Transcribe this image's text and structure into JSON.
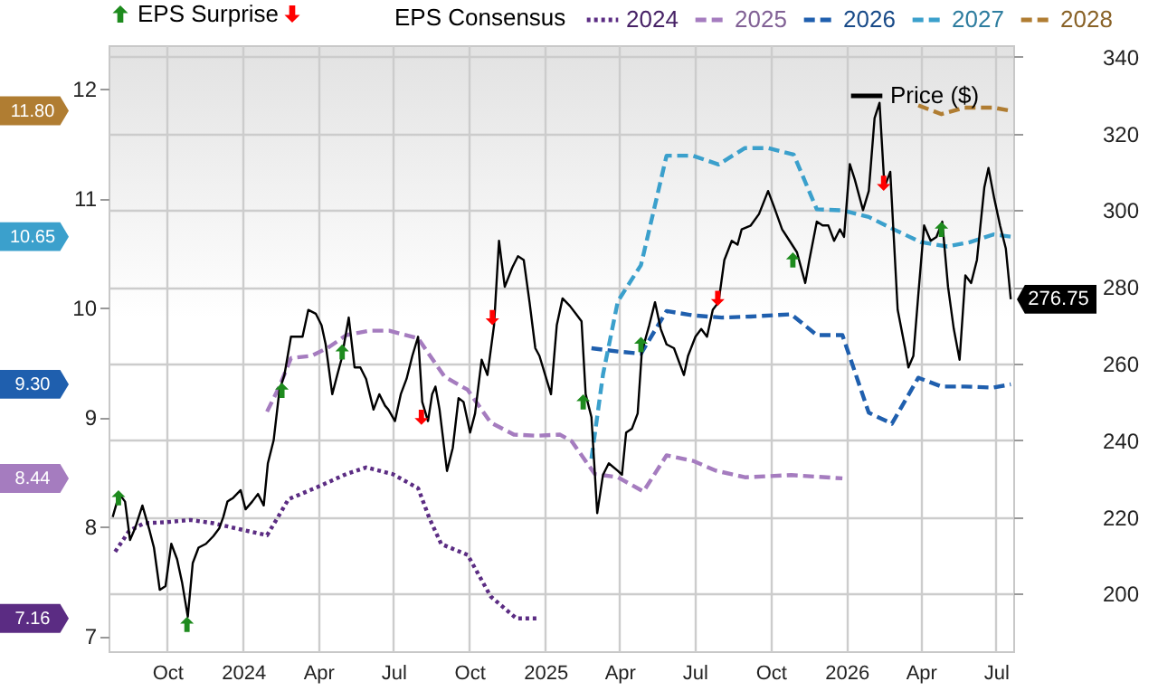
{
  "chart_data": {
    "type": "line",
    "legend_title": "EPS Consensus",
    "legend": "top",
    "grid": true,
    "xlim": [
      "2023-07-22",
      "2026-07-22"
    ],
    "xticks": [
      {
        "value": "2023-10-01",
        "label": "Oct"
      },
      {
        "value": "2024-01-01",
        "label": "2024"
      },
      {
        "value": "2024-04-01",
        "label": "Apr"
      },
      {
        "value": "2024-07-01",
        "label": "Jul"
      },
      {
        "value": "2024-10-01",
        "label": "Oct"
      },
      {
        "value": "2025-01-01",
        "label": "2025"
      },
      {
        "value": "2025-04-01",
        "label": "Apr"
      },
      {
        "value": "2025-07-01",
        "label": "Jul"
      },
      {
        "value": "2025-10-01",
        "label": "Oct"
      },
      {
        "value": "2026-01-01",
        "label": "2026"
      },
      {
        "value": "2026-04-01",
        "label": "Apr"
      },
      {
        "value": "2026-07-01",
        "label": "Jul"
      }
    ],
    "annotations": [
      "7.16",
      "8.44",
      "9.30",
      "10.65",
      "11.80"
    ],
    "ylim": [
      6.86,
      12.4
    ],
    "yticks": [
      7,
      8,
      9,
      10,
      11,
      12
    ],
    "y2lim": [
      185,
      343
    ],
    "y2ticks": [
      200,
      220,
      240,
      260,
      280,
      300,
      320,
      340
    ],
    "series": [
      {
        "name": "2024",
        "line_style": "dotted",
        "color": "#5b2c83",
        "x": [
          "2023-07-30",
          "2023-08-16",
          "2023-09-03",
          "2023-10-01",
          "2023-10-29",
          "2023-11-26",
          "2023-12-31",
          "2024-01-30",
          "2024-02-11",
          "2024-02-25",
          "2024-03-31",
          "2024-05-05",
          "2024-05-29",
          "2024-06-30",
          "2024-07-31",
          "2024-08-14",
          "2024-08-28",
          "2024-09-29",
          "2024-10-27",
          "2024-11-27",
          "2024-12-25"
        ],
        "values": [
          7.77,
          7.96,
          8.03,
          8.04,
          8.06,
          8.03,
          7.97,
          7.92,
          8.07,
          8.25,
          8.36,
          8.48,
          8.54,
          8.48,
          8.35,
          8.07,
          7.84,
          7.74,
          7.36,
          7.16,
          7.16
        ]
      },
      {
        "name": "2025",
        "line_style": "dashed",
        "color": "#a57cbf",
        "x": [
          "2024-01-30",
          "2024-02-14",
          "2024-02-28",
          "2024-03-24",
          "2024-04-14",
          "2024-05-05",
          "2024-06-02",
          "2024-06-26",
          "2024-07-31",
          "2024-09-01",
          "2024-09-29",
          "2024-10-27",
          "2024-11-24",
          "2024-12-22",
          "2025-01-19",
          "2025-02-02",
          "2025-03-02",
          "2025-03-30",
          "2025-04-30",
          "2025-05-28",
          "2025-06-29",
          "2025-07-27",
          "2025-08-31",
          "2025-10-26",
          "2025-12-27"
        ],
        "values": [
          9.05,
          9.28,
          9.54,
          9.56,
          9.64,
          9.75,
          9.79,
          9.79,
          9.72,
          9.37,
          9.25,
          8.95,
          8.84,
          8.83,
          8.84,
          8.78,
          8.48,
          8.45,
          8.32,
          8.65,
          8.6,
          8.51,
          8.45,
          8.47,
          8.44
        ]
      },
      {
        "name": "2026",
        "line_style": "dashed",
        "color": "#1f5fae",
        "x": [
          "2025-02-26",
          "2025-03-30",
          "2025-04-27",
          "2025-05-28",
          "2025-06-29",
          "2025-08-03",
          "2025-09-07",
          "2025-10-26",
          "2025-11-26",
          "2025-12-27",
          "2026-01-28",
          "2026-02-25",
          "2026-03-29",
          "2026-04-26",
          "2026-05-24",
          "2026-06-28",
          "2026-07-19"
        ],
        "values": [
          9.63,
          9.6,
          9.58,
          9.97,
          9.93,
          9.91,
          9.92,
          9.94,
          9.75,
          9.75,
          9.04,
          8.94,
          9.36,
          9.28,
          9.28,
          9.27,
          9.3
        ]
      },
      {
        "name": "2027",
        "line_style": "dashed",
        "color": "#3ba0cc",
        "x": [
          "2025-02-26",
          "2025-03-12",
          "2025-03-30",
          "2025-04-27",
          "2025-05-28",
          "2025-06-29",
          "2025-07-30",
          "2025-08-31",
          "2025-09-28",
          "2025-10-29",
          "2025-11-26",
          "2025-12-27",
          "2026-01-28",
          "2026-03-01",
          "2026-04-01",
          "2026-05-03",
          "2026-05-31",
          "2026-06-28",
          "2026-07-19"
        ],
        "values": [
          8.62,
          9.39,
          10.06,
          10.39,
          11.39,
          11.39,
          11.31,
          11.46,
          11.46,
          11.4,
          10.9,
          10.89,
          10.83,
          10.71,
          10.6,
          10.56,
          10.6,
          10.67,
          10.65
        ]
      },
      {
        "name": "2028",
        "line_style": "dashed",
        "color": "#b07d32",
        "x": [
          "2026-03-29",
          "2026-04-26",
          "2026-05-24",
          "2026-06-28",
          "2026-07-19"
        ],
        "values": [
          11.85,
          11.77,
          11.83,
          11.83,
          11.8
        ]
      },
      {
        "name": "Price ($)",
        "axis": "y2",
        "line_style": "solid",
        "color": "#000000",
        "x": [
          "2023-07-27",
          "2023-08-04",
          "2023-08-11",
          "2023-08-17",
          "2023-08-23",
          "2023-09-01",
          "2023-09-09",
          "2023-09-15",
          "2023-09-22",
          "2023-09-29",
          "2023-10-06",
          "2023-10-13",
          "2023-10-19",
          "2023-10-26",
          "2023-11-01",
          "2023-11-08",
          "2023-11-17",
          "2023-11-26",
          "2023-12-03",
          "2023-12-08",
          "2023-12-13",
          "2023-12-20",
          "2023-12-29",
          "2024-01-04",
          "2024-01-12",
          "2024-01-19",
          "2024-01-26",
          "2024-01-31",
          "2024-02-07",
          "2024-02-14",
          "2024-02-20",
          "2024-02-28",
          "2024-03-06",
          "2024-03-13",
          "2024-03-20",
          "2024-03-29",
          "2024-04-05",
          "2024-04-10",
          "2024-04-18",
          "2024-04-24",
          "2024-04-29",
          "2024-05-08",
          "2024-05-15",
          "2024-05-22",
          "2024-05-29",
          "2024-06-07",
          "2024-06-14",
          "2024-06-21",
          "2024-06-25",
          "2024-07-03",
          "2024-07-10",
          "2024-07-17",
          "2024-07-24",
          "2024-07-31",
          "2024-08-05",
          "2024-08-12",
          "2024-08-17",
          "2024-08-21",
          "2024-08-26",
          "2024-09-04",
          "2024-09-11",
          "2024-09-18",
          "2024-09-24",
          "2024-10-02",
          "2024-10-08",
          "2024-10-16",
          "2024-10-23",
          "2024-10-31",
          "2024-11-06",
          "2024-11-13",
          "2024-11-22",
          "2024-11-29",
          "2024-12-06",
          "2024-12-13",
          "2024-12-20",
          "2024-12-25",
          "2025-01-01",
          "2025-01-08",
          "2025-01-15",
          "2025-01-22",
          "2025-01-31",
          "2025-02-07",
          "2025-02-14",
          "2025-02-19",
          "2025-02-26",
          "2025-03-05",
          "2025-03-12",
          "2025-03-19",
          "2025-03-30",
          "2025-04-04",
          "2025-04-09",
          "2025-04-16",
          "2025-04-23",
          "2025-04-28",
          "2025-05-07",
          "2025-05-14",
          "2025-05-21",
          "2025-05-28",
          "2025-06-06",
          "2025-06-18",
          "2025-06-23",
          "2025-07-02",
          "2025-07-09",
          "2025-07-16",
          "2025-07-23",
          "2025-07-30",
          "2025-08-06",
          "2025-08-15",
          "2025-08-22",
          "2025-08-27",
          "2025-09-07",
          "2025-09-17",
          "2025-09-28",
          "2025-10-05",
          "2025-10-15",
          "2025-10-24",
          "2025-11-02",
          "2025-11-12",
          "2025-11-17",
          "2025-11-26",
          "2025-12-03",
          "2025-12-10",
          "2025-12-17",
          "2025-12-24",
          "2025-12-29",
          "2026-01-05",
          "2026-01-11",
          "2026-01-21",
          "2026-01-28",
          "2026-02-04",
          "2026-02-10",
          "2026-02-16",
          "2026-02-23",
          "2026-03-04",
          "2026-03-13",
          "2026-03-17",
          "2026-03-23",
          "2026-03-29",
          "2026-04-05",
          "2026-04-13",
          "2026-04-20",
          "2026-04-27",
          "2026-05-04",
          "2026-05-11",
          "2026-05-18",
          "2026-05-25",
          "2026-06-01",
          "2026-06-08",
          "2026-06-17",
          "2026-06-22",
          "2026-06-29",
          "2026-07-06",
          "2026-07-13",
          "2026-07-19"
        ],
        "values": [
          220,
          226,
          224,
          214,
          217,
          223,
          217,
          212,
          201,
          202,
          213,
          209,
          203,
          194,
          208,
          212,
          213,
          215,
          217,
          220,
          224,
          225,
          227,
          222,
          224,
          226,
          223,
          234,
          240,
          253,
          257,
          267,
          267,
          267,
          274,
          273,
          270,
          265,
          252,
          257,
          261,
          272,
          259,
          259,
          256,
          248,
          252,
          249,
          248,
          245,
          252,
          256,
          262,
          267,
          250,
          245,
          252,
          254,
          248,
          232,
          238,
          251,
          250,
          242,
          247,
          261,
          257,
          270,
          292,
          280,
          285,
          288,
          287,
          276,
          264,
          262,
          257,
          252,
          270,
          277,
          275,
          273,
          271,
          252,
          246,
          221,
          231,
          234,
          232,
          231,
          242,
          243,
          247,
          263,
          270,
          276,
          269,
          265,
          264,
          257,
          262,
          267,
          269,
          267,
          274,
          276,
          287,
          292,
          291,
          295,
          296,
          299,
          305,
          301,
          295,
          292,
          289,
          281,
          287,
          297,
          296,
          296,
          292,
          295,
          293,
          312,
          308,
          300,
          305,
          324,
          328,
          306,
          310,
          274,
          264,
          259,
          262,
          278,
          296,
          292,
          293,
          297,
          280,
          269,
          261,
          283,
          281,
          287,
          306,
          311,
          303,
          296,
          290,
          276.75
        ],
        "value_labels": [
          null,
          null,
          null,
          null,
          null,
          null,
          null,
          null,
          null,
          null,
          null,
          null,
          null,
          null,
          null,
          null,
          null,
          null,
          null,
          null,
          null,
          null,
          null,
          null,
          null,
          null,
          null,
          null,
          null,
          null,
          null,
          null,
          null,
          null,
          null,
          null,
          null,
          null,
          null,
          null,
          null,
          null,
          null,
          null,
          null,
          null,
          null,
          null,
          null,
          null,
          null,
          null,
          null,
          null,
          null,
          null,
          null,
          null,
          null,
          null,
          null,
          null,
          null,
          null,
          null,
          null,
          null,
          null,
          null,
          null,
          null,
          null,
          null,
          null,
          null,
          null,
          null,
          null,
          null,
          null,
          null,
          null,
          null,
          null,
          null,
          null,
          null,
          null,
          null,
          null,
          null,
          null,
          null,
          null,
          null,
          null,
          null,
          null,
          null,
          null,
          null,
          null,
          null,
          null,
          null,
          null,
          null,
          null,
          null,
          null,
          null,
          null,
          null,
          null,
          null,
          null,
          null,
          null,
          null,
          null,
          null,
          null,
          null,
          null,
          null,
          null,
          null,
          null,
          null,
          null,
          null,
          null,
          null,
          null,
          null,
          null,
          null,
          null,
          null,
          null,
          null,
          null,
          null,
          null,
          null,
          null,
          null,
          null,
          null,
          null,
          null,
          null,
          null,
          "276.75"
        ]
      },
      {
        "name": "EPS Surprise",
        "type": "scatter",
        "axis": "y2",
        "marker": "triangle",
        "color": "#1e8b1e",
        "x": [
          "2023-08-03",
          "2023-10-25",
          "2024-02-17",
          "2024-04-30",
          "2025-02-16",
          "2025-04-27",
          "2025-10-28",
          "2026-04-26"
        ],
        "values": [
          225,
          192,
          253,
          263,
          250,
          265,
          287,
          295
        ]
      },
      {
        "type": "scatter",
        "axis": "y2",
        "marker": "triangle",
        "color": "#ff0000",
        "x": [
          "2024-08-04",
          "2024-10-29",
          "2025-07-29",
          "2026-02-15"
        ],
        "values": [
          246,
          272,
          277,
          307
        ]
      }
    ]
  }
}
